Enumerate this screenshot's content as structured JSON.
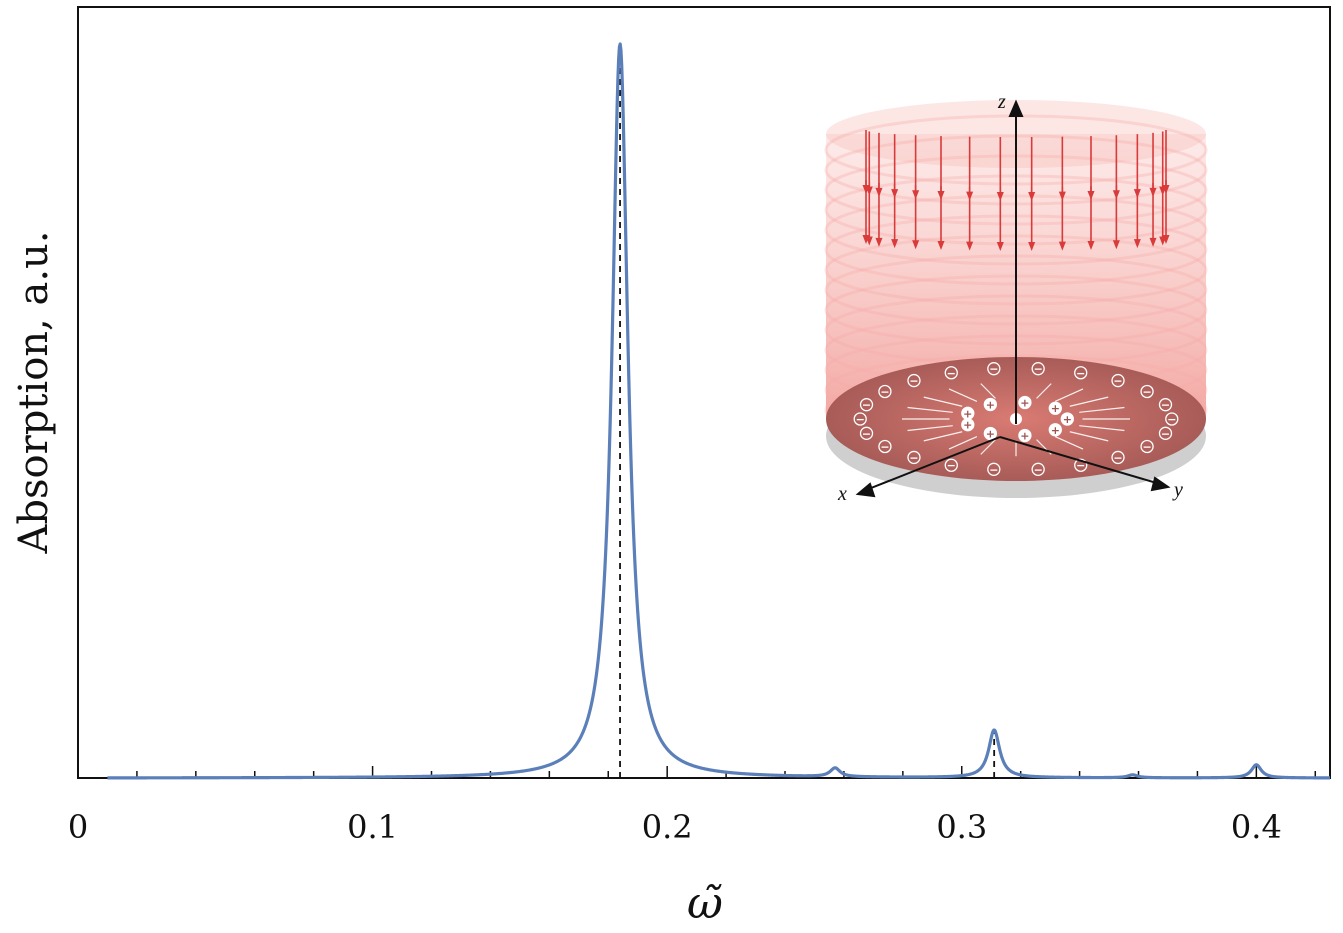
{
  "chart_data": {
    "type": "line",
    "title": "",
    "xlabel": "ω̃",
    "ylabel": "Absorption, a.u.",
    "xlim": [
      0,
      0.425
    ],
    "ylim": [
      0,
      1.05
    ],
    "x_ticks": [
      0,
      0.1,
      0.2,
      0.3,
      0.4
    ],
    "x_tick_labels": [
      "0",
      "0.1",
      "0.2",
      "0.3",
      "0.4"
    ],
    "y_ticks": [],
    "grid": false,
    "legend": false,
    "series": [
      {
        "color": "#5B7FB8",
        "peaks": [
          {
            "x": 0.184,
            "height": 1.0,
            "width": 0.0065
          },
          {
            "x": 0.257,
            "height": 0.012,
            "width": 0.004
          },
          {
            "x": 0.311,
            "height": 0.065,
            "width": 0.0045
          },
          {
            "x": 0.358,
            "height": 0.004,
            "width": 0.004
          },
          {
            "x": 0.4,
            "height": 0.018,
            "width": 0.004
          }
        ]
      }
    ],
    "vertical_markers": [
      {
        "x": 0.184,
        "style": "dashed",
        "to_peak": 1.0
      },
      {
        "x": 0.311,
        "style": "dashed",
        "to_peak": 0.065
      }
    ],
    "inset": {
      "description_free": true,
      "axis_labels": {
        "x": "x",
        "y": "y",
        "z": "z"
      },
      "field_arrow_color": "#D93A3A",
      "cylinder_color": "#F08A84",
      "disk_color": "#B85A57",
      "positive_charge_symbol": "+",
      "negative_charge_symbol": "⊖"
    }
  }
}
